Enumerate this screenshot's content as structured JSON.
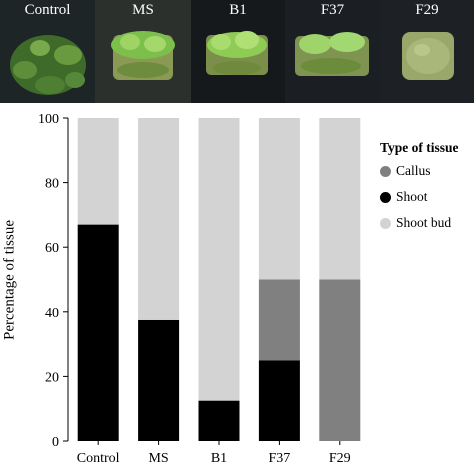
{
  "panels": [
    {
      "label": "Control",
      "bg": "#20282a"
    },
    {
      "label": "MS",
      "bg": "#2a2f2c"
    },
    {
      "label": "B1",
      "bg": "#161a1c"
    },
    {
      "label": "F37",
      "bg": "#1c2024"
    },
    {
      "label": "F29",
      "bg": "#1e2226"
    }
  ],
  "legend": {
    "title": "Type of tissue",
    "items": [
      {
        "label": "Callus",
        "color": "#808080"
      },
      {
        "label": "Shoot",
        "color": "#000000"
      },
      {
        "label": "Shoot bud",
        "color": "#d3d3d3"
      }
    ]
  },
  "chart_data": {
    "type": "bar",
    "stacked": true,
    "categories": [
      "Control",
      "MS",
      "B1",
      "F37",
      "F29"
    ],
    "series": [
      {
        "name": "Shoot",
        "color": "#000000",
        "values": [
          67,
          37.5,
          12.5,
          25,
          0
        ]
      },
      {
        "name": "Callus",
        "color": "#808080",
        "values": [
          0,
          0,
          0,
          25,
          50
        ]
      },
      {
        "name": "Shoot bud",
        "color": "#d3d3d3",
        "values": [
          33,
          62.5,
          87.5,
          50,
          50
        ]
      }
    ],
    "ylabel": "Percentage of tissue",
    "ylim": [
      0,
      100
    ],
    "yticks": [
      0,
      20,
      40,
      60,
      80,
      100
    ],
    "legend_position": "right"
  }
}
